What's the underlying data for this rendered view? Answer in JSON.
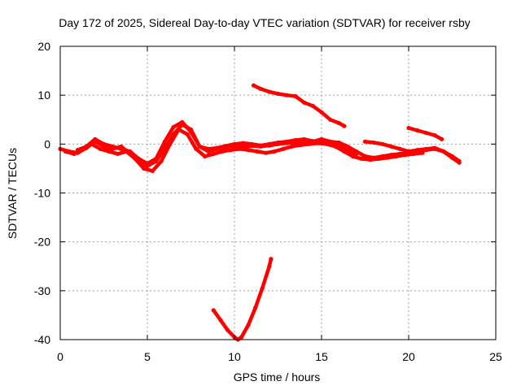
{
  "chart_data": {
    "type": "line",
    "title": "Day 172 of 2025, Sidereal Day-to-day VTEC variation (SDTVAR) for receiver rsby",
    "xlabel": "GPS time / hours",
    "ylabel": "SDTVAR / TECUs",
    "xlim": [
      0,
      25
    ],
    "ylim": [
      -40,
      20
    ],
    "xticks": [
      0,
      5,
      10,
      15,
      20,
      25
    ],
    "yticks": [
      -40,
      -30,
      -20,
      -10,
      0,
      10,
      20
    ],
    "grid": true,
    "legend": "none",
    "series_color": "#ff0000",
    "series": [
      {
        "name": "band-a",
        "x": [
          0.0,
          0.5,
          1.0,
          1.5,
          2.0,
          2.5,
          3.0,
          3.5,
          4.0,
          4.5,
          5.0,
          5.5,
          6.0,
          6.5,
          7.0,
          7.5,
          8.0,
          8.5,
          9.0,
          9.5,
          10.0,
          10.5,
          11.0,
          11.5,
          12.0,
          12.5,
          13.0,
          13.5,
          14.0,
          14.5,
          15.0,
          15.5,
          16.0,
          16.5,
          17.0,
          17.5,
          18.0,
          18.5,
          19.0,
          19.5,
          20.0,
          20.5,
          21.0,
          21.5,
          22.0,
          22.5,
          22.9
        ],
        "y": [
          -1.0,
          -1.5,
          -1.8,
          -0.8,
          0.5,
          -0.5,
          -1.0,
          -0.5,
          -2.0,
          -3.5,
          -4.5,
          -3.5,
          -1.0,
          2.0,
          4.0,
          3.0,
          -0.5,
          -1.5,
          -1.0,
          -0.8,
          -0.6,
          -0.5,
          -0.4,
          -0.5,
          -0.3,
          0.0,
          0.2,
          0.3,
          0.5,
          0.5,
          1.0,
          0.5,
          0.3,
          -0.5,
          -1.5,
          -2.5,
          -2.8,
          -2.5,
          -2.2,
          -2.0,
          -1.8,
          -1.5,
          -1.2,
          -1.0,
          -1.5,
          -2.5,
          -3.5
        ]
      },
      {
        "name": "band-b",
        "x": [
          0.3,
          0.8,
          1.3,
          1.8,
          2.3,
          2.8,
          3.3,
          3.8,
          4.3,
          4.8,
          5.3,
          5.8,
          6.3,
          6.8,
          7.3,
          7.8,
          8.3,
          8.8,
          9.3,
          9.8,
          10.3,
          10.8,
          11.3,
          11.8,
          12.3,
          12.8,
          13.3,
          13.8,
          14.3,
          14.8,
          15.3,
          15.8,
          16.3,
          16.8,
          17.3,
          17.8,
          18.3,
          18.8,
          19.3,
          19.8,
          20.3,
          20.8
        ],
        "y": [
          -1.5,
          -2.0,
          -1.0,
          0.0,
          -1.0,
          -1.5,
          -2.0,
          -1.5,
          -3.0,
          -5.0,
          -5.5,
          -3.5,
          0.0,
          3.0,
          2.0,
          -1.0,
          -2.5,
          -2.0,
          -1.5,
          -1.2,
          -1.0,
          -1.2,
          -1.5,
          -1.8,
          -1.5,
          -1.0,
          -0.5,
          -0.2,
          0.0,
          0.2,
          0.0,
          -0.5,
          -1.5,
          -2.5,
          -3.0,
          -3.2,
          -3.0,
          -2.8,
          -2.5,
          -2.2,
          -2.0,
          -1.8
        ]
      },
      {
        "name": "band-c",
        "x": [
          1.0,
          1.5,
          2.0,
          2.5,
          3.0,
          3.5,
          4.0,
          4.5,
          5.0,
          5.5,
          6.0,
          6.5,
          7.0,
          7.5,
          8.0,
          8.5,
          9.0,
          9.5,
          10.0,
          10.5,
          11.0,
          11.5,
          12.0,
          12.5,
          13.0,
          13.5,
          14.0,
          14.5,
          15.0,
          15.5,
          16.0,
          16.5,
          17.0
        ],
        "y": [
          -1.2,
          -0.5,
          1.0,
          0.0,
          -0.5,
          -1.0,
          -1.5,
          -3.0,
          -4.0,
          -3.0,
          0.5,
          3.5,
          4.5,
          2.5,
          -0.5,
          -1.0,
          -0.8,
          -0.4,
          0.0,
          0.2,
          0.0,
          -0.3,
          0.0,
          0.3,
          0.5,
          0.8,
          1.0,
          0.6,
          0.2,
          0.0,
          -0.5,
          -1.2,
          -2.0
        ]
      },
      {
        "name": "segment-upper-descending",
        "x": [
          11.1,
          11.5,
          12.0,
          12.5,
          13.0,
          13.5,
          14.0,
          14.5,
          15.0,
          15.5,
          16.0,
          16.3
        ],
        "y": [
          12.0,
          11.3,
          10.7,
          10.3,
          10.0,
          9.8,
          8.5,
          7.8,
          6.5,
          5.0,
          4.3,
          3.7
        ]
      },
      {
        "name": "segment-right-descending",
        "x": [
          20.0,
          20.5,
          21.0,
          21.5,
          21.9
        ],
        "y": [
          3.3,
          2.8,
          2.3,
          1.8,
          1.0
        ]
      },
      {
        "name": "segment-right-band",
        "x": [
          17.5,
          18.0,
          18.5,
          19.0,
          19.5,
          20.0,
          20.5,
          21.0,
          21.5,
          22.0,
          22.5,
          22.9
        ],
        "y": [
          0.5,
          0.3,
          0.0,
          -0.5,
          -1.0,
          -1.5,
          -1.2,
          -1.0,
          -0.8,
          -1.5,
          -2.8,
          -3.8
        ]
      },
      {
        "name": "segment-v-dip",
        "x": [
          8.8,
          9.2,
          9.6,
          10.0,
          10.2,
          10.4,
          10.8,
          11.2,
          11.6,
          12.0,
          12.1
        ],
        "y": [
          -34.0,
          -36.0,
          -38.0,
          -39.5,
          -40.0,
          -39.5,
          -37.0,
          -33.5,
          -29.5,
          -25.0,
          -23.5
        ]
      }
    ]
  }
}
